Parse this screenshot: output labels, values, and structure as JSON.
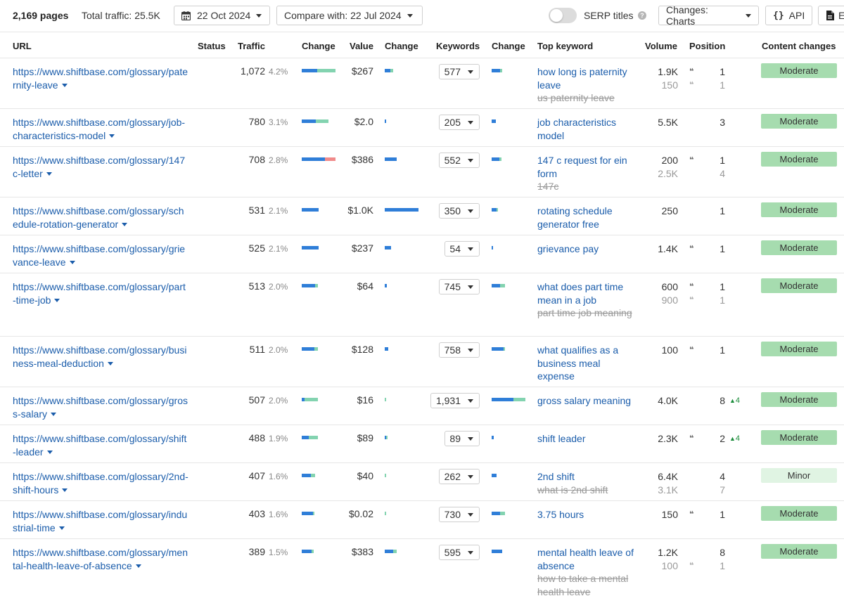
{
  "toolbar": {
    "pages_count": "2,169 pages",
    "total_traffic": "Total traffic: 25.5K",
    "date": "22 Oct 2024",
    "compare": "Compare with: 22 Jul 2024",
    "serp_titles_label": "SERP titles",
    "serp_titles_enabled": false,
    "changes_label": "Changes: Charts",
    "api_label": "API",
    "export_label": "E"
  },
  "columns": {
    "url": "URL",
    "status": "Status",
    "traffic": "Traffic",
    "change1": "Change",
    "value": "Value",
    "change2": "Change",
    "keywords": "Keywords",
    "change3": "Change",
    "top_keyword": "Top keyword",
    "volume": "Volume",
    "position": "Position",
    "content_changes": "Content changes"
  },
  "colors": {
    "link": "#1b5dab",
    "bar_blue": "#2f7ed8",
    "bar_green": "#83d3b0",
    "bar_red": "#f08a8a",
    "moderate_badge": "#a6dcaf",
    "minor_badge": "#e0f4e3",
    "position_up": "#1b8c3b"
  },
  "rows": [
    {
      "url": "https://www.shiftbase.com/glossary/paternity-leave",
      "traffic": "1,072",
      "traffic_pct": "4.2%",
      "value": "$267",
      "keywords": "577",
      "keywords_list": [
        "how long is paternity leave"
      ],
      "old_keywords": [
        "us paternity leave"
      ],
      "volumes": [
        "1.9K",
        "150"
      ],
      "serp_icons": [
        true,
        true
      ],
      "positions": [
        "1",
        "1"
      ],
      "position_change": "",
      "content_change": "Moderate"
    },
    {
      "url": "https://www.shiftbase.com/glossary/job-characteristics-model",
      "traffic": "780",
      "traffic_pct": "3.1%",
      "value": "$2.0",
      "keywords": "205",
      "keywords_list": [
        "job characteristics model"
      ],
      "old_keywords": [],
      "volumes": [
        "5.5K"
      ],
      "serp_icons": [
        false
      ],
      "positions": [
        "3"
      ],
      "position_change": "",
      "content_change": "Moderate"
    },
    {
      "url": "https://www.shiftbase.com/glossary/147c-letter",
      "traffic": "708",
      "traffic_pct": "2.8%",
      "value": "$386",
      "keywords": "552",
      "keywords_list": [
        "147 c request for ein form"
      ],
      "old_keywords": [
        "147c"
      ],
      "volumes": [
        "200",
        "2.5K"
      ],
      "serp_icons": [
        true,
        false
      ],
      "positions": [
        "1",
        "4"
      ],
      "position_change": "",
      "content_change": "Moderate"
    },
    {
      "url": "https://www.shiftbase.com/glossary/schedule-rotation-generator",
      "traffic": "531",
      "traffic_pct": "2.1%",
      "value": "$1.0K",
      "keywords": "350",
      "keywords_list": [
        "rotating schedule generator free"
      ],
      "old_keywords": [],
      "volumes": [
        "250"
      ],
      "serp_icons": [
        false
      ],
      "positions": [
        "1"
      ],
      "position_change": "",
      "content_change": "Moderate"
    },
    {
      "url": "https://www.shiftbase.com/glossary/grievance-leave",
      "traffic": "525",
      "traffic_pct": "2.1%",
      "value": "$237",
      "keywords": "54",
      "keywords_list": [
        "grievance pay"
      ],
      "old_keywords": [],
      "volumes": [
        "1.4K"
      ],
      "serp_icons": [
        true
      ],
      "positions": [
        "1"
      ],
      "position_change": "",
      "content_change": "Moderate"
    },
    {
      "url": "https://www.shiftbase.com/glossary/part-time-job",
      "traffic": "513",
      "traffic_pct": "2.0%",
      "value": "$64",
      "keywords": "745",
      "keywords_list": [
        "what does part time mean in a job"
      ],
      "old_keywords": [
        "part time job meaning"
      ],
      "volumes": [
        "600",
        "900"
      ],
      "serp_icons": [
        true,
        true
      ],
      "positions": [
        "1",
        "1"
      ],
      "position_change": "",
      "content_change": "Moderate"
    },
    {
      "url": "https://www.shiftbase.com/glossary/business-meal-deduction",
      "traffic": "511",
      "traffic_pct": "2.0%",
      "value": "$128",
      "keywords": "758",
      "keywords_list": [
        "what qualifies as a business meal expense"
      ],
      "old_keywords": [],
      "volumes": [
        "100"
      ],
      "serp_icons": [
        true
      ],
      "positions": [
        "1"
      ],
      "position_change": "",
      "content_change": "Moderate"
    },
    {
      "url": "https://www.shiftbase.com/glossary/gross-salary",
      "traffic": "507",
      "traffic_pct": "2.0%",
      "value": "$16",
      "keywords": "1,931",
      "keywords_list": [
        "gross salary meaning"
      ],
      "old_keywords": [],
      "volumes": [
        "4.0K"
      ],
      "serp_icons": [
        false
      ],
      "positions": [
        "8"
      ],
      "position_change": "4",
      "content_change": "Moderate"
    },
    {
      "url": "https://www.shiftbase.com/glossary/shift-leader",
      "traffic": "488",
      "traffic_pct": "1.9%",
      "value": "$89",
      "keywords": "89",
      "keywords_list": [
        "shift leader"
      ],
      "old_keywords": [],
      "volumes": [
        "2.3K"
      ],
      "serp_icons": [
        true
      ],
      "positions": [
        "2"
      ],
      "position_change": "4",
      "content_change": "Moderate"
    },
    {
      "url": "https://www.shiftbase.com/glossary/2nd-shift-hours",
      "traffic": "407",
      "traffic_pct": "1.6%",
      "value": "$40",
      "keywords": "262",
      "keywords_list": [
        "2nd shift"
      ],
      "old_keywords": [
        "what is 2nd shift"
      ],
      "volumes": [
        "6.4K",
        "3.1K"
      ],
      "serp_icons": [
        false,
        false
      ],
      "positions": [
        "4",
        "7"
      ],
      "position_change": "",
      "content_change": "Minor"
    },
    {
      "url": "https://www.shiftbase.com/glossary/industrial-time",
      "traffic": "403",
      "traffic_pct": "1.6%",
      "value": "$0.02",
      "keywords": "730",
      "keywords_list": [
        "3.75 hours"
      ],
      "old_keywords": [],
      "volumes": [
        "150"
      ],
      "serp_icons": [
        true
      ],
      "positions": [
        "1"
      ],
      "position_change": "",
      "content_change": "Moderate"
    },
    {
      "url": "https://www.shiftbase.com/glossary/mental-health-leave-of-absence",
      "traffic": "389",
      "traffic_pct": "1.5%",
      "value": "$383",
      "keywords": "595",
      "keywords_list": [
        "mental health leave of absence"
      ],
      "old_keywords": [
        "how to take a mental health leave"
      ],
      "volumes": [
        "1.2K",
        "100"
      ],
      "serp_icons": [
        false,
        true
      ],
      "positions": [
        "8",
        "1"
      ],
      "position_change": "",
      "content_change": "Moderate"
    }
  ],
  "change_bars": {
    "traffic": [
      [
        {
          "c": "blue",
          "f": 0.46
        },
        {
          "c": "green",
          "f": 0.54
        }
      ],
      [
        {
          "c": "blue",
          "f": 0.42
        },
        {
          "c": "green",
          "f": 0.38
        }
      ],
      [
        {
          "c": "blue",
          "f": 0.69
        },
        {
          "c": "red",
          "f": 0.31
        }
      ],
      [
        {
          "c": "blue",
          "f": 0.5
        }
      ],
      [
        {
          "c": "blue",
          "f": 0.5
        }
      ],
      [
        {
          "c": "blue",
          "f": 0.4
        },
        {
          "c": "green",
          "f": 0.08
        }
      ],
      [
        {
          "c": "blue",
          "f": 0.38
        },
        {
          "c": "green",
          "f": 0.1
        }
      ],
      [
        {
          "c": "blue",
          "f": 0.08
        },
        {
          "c": "green",
          "f": 0.4
        }
      ],
      [
        {
          "c": "blue",
          "f": 0.2
        },
        {
          "c": "green",
          "f": 0.27
        }
      ],
      [
        {
          "c": "blue",
          "f": 0.27
        },
        {
          "c": "green",
          "f": 0.13
        }
      ],
      [
        {
          "c": "blue",
          "f": 0.33
        },
        {
          "c": "green",
          "f": 0.04
        }
      ],
      [
        {
          "c": "blue",
          "f": 0.3
        },
        {
          "c": "green",
          "f": 0.06
        }
      ]
    ],
    "value": [
      [
        {
          "c": "blue",
          "f": 0.17
        },
        {
          "c": "green",
          "f": 0.08
        }
      ],
      [
        {
          "c": "blue",
          "f": 0.04
        }
      ],
      [
        {
          "c": "blue",
          "f": 0.35
        }
      ],
      [
        {
          "c": "blue",
          "f": 1.0
        }
      ],
      [
        {
          "c": "blue",
          "f": 0.19
        }
      ],
      [
        {
          "c": "blue",
          "f": 0.06
        }
      ],
      [
        {
          "c": "blue",
          "f": 0.1
        }
      ],
      [
        {
          "c": "green",
          "f": 0.04
        }
      ],
      [
        {
          "c": "blue",
          "f": 0.04
        },
        {
          "c": "green",
          "f": 0.04
        }
      ],
      [
        {
          "c": "green",
          "f": 0.04
        }
      ],
      [
        {
          "c": "green",
          "f": 0.02
        }
      ],
      [
        {
          "c": "blue",
          "f": 0.25
        },
        {
          "c": "green",
          "f": 0.1
        }
      ]
    ],
    "keywords": [
      [
        {
          "c": "blue",
          "f": 0.26
        },
        {
          "c": "green",
          "f": 0.06
        }
      ],
      [
        {
          "c": "blue",
          "f": 0.12
        }
      ],
      [
        {
          "c": "blue",
          "f": 0.22
        },
        {
          "c": "green",
          "f": 0.06
        }
      ],
      [
        {
          "c": "blue",
          "f": 0.14
        },
        {
          "c": "green",
          "f": 0.04
        }
      ],
      [
        {
          "c": "blue",
          "f": 0.04
        }
      ],
      [
        {
          "c": "blue",
          "f": 0.26
        },
        {
          "c": "green",
          "f": 0.14
        }
      ],
      [
        {
          "c": "blue",
          "f": 0.36
        },
        {
          "c": "green",
          "f": 0.04
        }
      ],
      [
        {
          "c": "blue",
          "f": 0.64
        },
        {
          "c": "green",
          "f": 0.36
        }
      ],
      [
        {
          "c": "blue",
          "f": 0.06
        }
      ],
      [
        {
          "c": "blue",
          "f": 0.14
        }
      ],
      [
        {
          "c": "blue",
          "f": 0.26
        },
        {
          "c": "green",
          "f": 0.14
        }
      ],
      [
        {
          "c": "blue",
          "f": 0.32
        }
      ]
    ]
  }
}
